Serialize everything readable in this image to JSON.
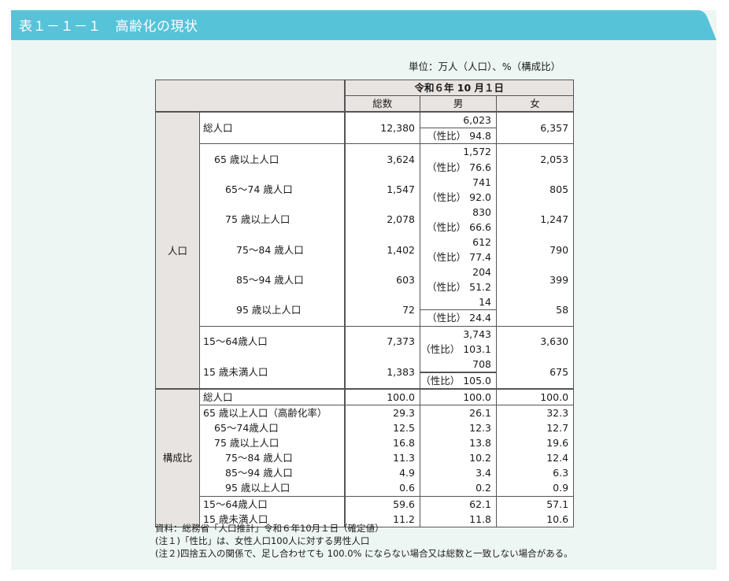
{
  "title": "表１－１－１　高齢化の現状",
  "unit": "単位：万人（人口）、%（構成比）",
  "header": {
    "date": "令和６年 10 月１日",
    "col_total": "総数",
    "col_male": "男",
    "col_female": "女"
  },
  "sex_ratio_label": "（性比）",
  "groups": {
    "population": "人口",
    "composition": "構成比"
  },
  "population_rows": [
    {
      "label": "総人口",
      "total": "12,380",
      "male": "6,023",
      "female": "6,357",
      "ratio": "94.8"
    },
    {
      "label": "65 歳以上人口",
      "total": "3,624",
      "male": "1,572",
      "female": "2,053",
      "ratio": "76.6"
    },
    {
      "label": "65～74 歳人口",
      "total": "1,547",
      "male": "741",
      "female": "805",
      "ratio": "92.0"
    },
    {
      "label": "75 歳以上人口",
      "total": "2,078",
      "male": "830",
      "female": "1,247",
      "ratio": "66.6"
    },
    {
      "label": "75～84 歳人口",
      "total": "1,402",
      "male": "612",
      "female": "790",
      "ratio": "77.4"
    },
    {
      "label": "85～94 歳人口",
      "total": "603",
      "male": "204",
      "female": "399",
      "ratio": "51.2"
    },
    {
      "label": "95 歳以上人口",
      "total": "72",
      "male": "14",
      "female": "58",
      "ratio": "24.4"
    },
    {
      "label": "15～64歳人口",
      "total": "7,373",
      "male": "3,743",
      "female": "3,630",
      "ratio": "103.1"
    },
    {
      "label": "15 歳未満人口",
      "total": "1,383",
      "male": "708",
      "female": "675",
      "ratio": "105.0"
    }
  ],
  "composition_rows": [
    {
      "label": "総人口",
      "total": "100.0",
      "male": "100.0",
      "female": "100.0"
    },
    {
      "label": "65 歳以上人口（高齢化率）",
      "total": "29.3",
      "male": "26.1",
      "female": "32.3"
    },
    {
      "label": "65～74歳人口",
      "total": "12.5",
      "male": "12.3",
      "female": "12.7"
    },
    {
      "label": "75 歳以上人口",
      "total": "16.8",
      "male": "13.8",
      "female": "19.6"
    },
    {
      "label": "75～84 歳人口",
      "total": "11.3",
      "male": "10.2",
      "female": "12.4"
    },
    {
      "label": "85～94 歳人口",
      "total": "4.9",
      "male": "3.4",
      "female": "6.3"
    },
    {
      "label": "95 歳以上人口",
      "total": "0.6",
      "male": "0.2",
      "female": "0.9"
    },
    {
      "label": "15～64歳人口",
      "total": "59.6",
      "male": "62.1",
      "female": "57.1"
    },
    {
      "label": "15 歳未満人口",
      "total": "11.2",
      "male": "11.8",
      "female": "10.6"
    }
  ],
  "notes": [
    "資料：総務省「人口推計」令和６年10月１日（確定値）",
    "(注１)「性比」は、女性人口100人に対する男性人口",
    "(注２)四捨五入の関係で、足し合わせても 100.0% にならない場合又は総数と一致しない場合がある。"
  ],
  "colors": {
    "title_bar": "#56c3d8",
    "panel": "#eef6f4",
    "header_fill": "#e8e4e1"
  }
}
